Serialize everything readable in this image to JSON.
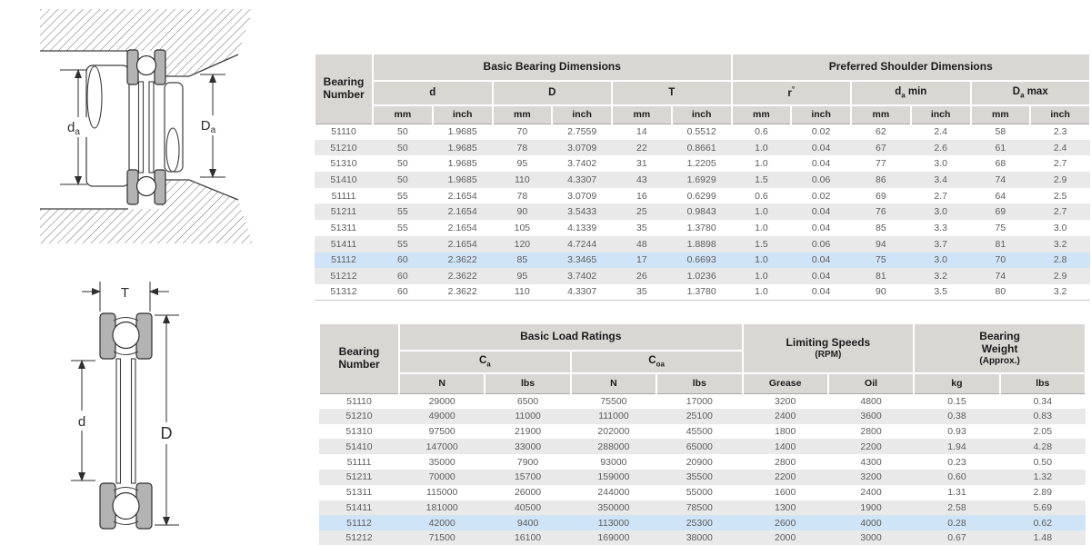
{
  "colors": {
    "header_bg": "#d8d7d4",
    "row_alt_bg": "#e9e9e9",
    "highlight_bg": "#cfe4f7",
    "header_text": "#1b1b1b",
    "data_text": "#5c5c5c",
    "washer_gray": "#b3b3b3"
  },
  "diagram_mounted": {
    "label_da": {
      "base": "d",
      "sub": "a"
    },
    "label_Da": {
      "base": "D",
      "sub": "a"
    }
  },
  "diagram_free": {
    "label_T": "T",
    "label_d": "d",
    "label_D": "D"
  },
  "dimensions_table": {
    "corner_header": "Bearing Number",
    "group1": "Basic Bearing Dimensions",
    "group2": "Preferred Shoulder Dimensions",
    "cols": [
      {
        "label": "d"
      },
      {
        "label": "D"
      },
      {
        "label": "T"
      },
      {
        "label": "r",
        "sup": "°"
      },
      {
        "label": "d",
        "sub": "a",
        "suffix": " min"
      },
      {
        "label": "D",
        "sub": "a",
        "suffix": " max"
      }
    ],
    "units": [
      "mm",
      "inch"
    ],
    "rows": [
      {
        "bearing": "51110",
        "values": [
          "50",
          "1.9685",
          "70",
          "2.7559",
          "14",
          "0.5512",
          "0.6",
          "0.02",
          "62",
          "2.4",
          "58",
          "2.3"
        ]
      },
      {
        "bearing": "51210",
        "values": [
          "50",
          "1.9685",
          "78",
          "3.0709",
          "22",
          "0.8661",
          "1.0",
          "0.04",
          "67",
          "2.6",
          "61",
          "2.4"
        ]
      },
      {
        "bearing": "51310",
        "values": [
          "50",
          "1.9685",
          "95",
          "3.7402",
          "31",
          "1.2205",
          "1.0",
          "0.04",
          "77",
          "3.0",
          "68",
          "2.7"
        ]
      },
      {
        "bearing": "51410",
        "values": [
          "50",
          "1.9685",
          "110",
          "4.3307",
          "43",
          "1.6929",
          "1.5",
          "0.06",
          "86",
          "3.4",
          "74",
          "2.9"
        ]
      },
      {
        "bearing": "51111",
        "values": [
          "55",
          "2.1654",
          "78",
          "3.0709",
          "16",
          "0.6299",
          "0.6",
          "0.02",
          "69",
          "2.7",
          "64",
          "2.5"
        ]
      },
      {
        "bearing": "51211",
        "values": [
          "55",
          "2.1654",
          "90",
          "3.5433",
          "25",
          "0.9843",
          "1.0",
          "0.04",
          "76",
          "3.0",
          "69",
          "2.7"
        ]
      },
      {
        "bearing": "51311",
        "values": [
          "55",
          "2.1654",
          "105",
          "4.1339",
          "35",
          "1.3780",
          "1.0",
          "0.04",
          "85",
          "3.3",
          "75",
          "3.0"
        ]
      },
      {
        "bearing": "51411",
        "values": [
          "55",
          "2.1654",
          "120",
          "4.7244",
          "48",
          "1.8898",
          "1.5",
          "0.06",
          "94",
          "3.7",
          "81",
          "3.2"
        ]
      },
      {
        "bearing": "51112",
        "highlight": true,
        "values": [
          "60",
          "2.3622",
          "85",
          "3.3465",
          "17",
          "0.6693",
          "1.0",
          "0.04",
          "75",
          "3.0",
          "70",
          "2.8"
        ]
      },
      {
        "bearing": "51212",
        "values": [
          "60",
          "2.3622",
          "95",
          "3.7402",
          "26",
          "1.0236",
          "1.0",
          "0.04",
          "81",
          "3.2",
          "74",
          "2.9"
        ]
      },
      {
        "bearing": "51312",
        "values": [
          "60",
          "2.3622",
          "110",
          "4.3307",
          "35",
          "1.3780",
          "1.0",
          "0.04",
          "90",
          "3.5",
          "80",
          "3.2"
        ]
      }
    ]
  },
  "ratings_table": {
    "corner_header": "Bearing Number",
    "group1": "Basic Load Ratings",
    "speeds_line1": "Limiting Speeds",
    "speeds_line2": "(RPM)",
    "weight_line1": "Bearing",
    "weight_line2": "Weight",
    "weight_line3": "(Approx.)",
    "subgroup1": {
      "base": "C",
      "sub": "a"
    },
    "subgroup2": {
      "base": "C",
      "sub": "oa"
    },
    "units": [
      "N",
      "lbs",
      "N",
      "lbs",
      "Grease",
      "Oil",
      "kg",
      "lbs"
    ],
    "rows": [
      {
        "bearing": "51110",
        "values": [
          "29000",
          "6500",
          "75500",
          "17000",
          "3200",
          "4800",
          "0.15",
          "0.34"
        ]
      },
      {
        "bearing": "51210",
        "values": [
          "49000",
          "11000",
          "111000",
          "25100",
          "2400",
          "3600",
          "0.38",
          "0.83"
        ]
      },
      {
        "bearing": "51310",
        "values": [
          "97500",
          "21900",
          "202000",
          "45500",
          "1800",
          "2800",
          "0.93",
          "2.05"
        ]
      },
      {
        "bearing": "51410",
        "values": [
          "147000",
          "33000",
          "288000",
          "65000",
          "1400",
          "2200",
          "1.94",
          "4.28"
        ]
      },
      {
        "bearing": "51111",
        "values": [
          "35000",
          "7900",
          "93000",
          "20900",
          "2800",
          "4300",
          "0.23",
          "0.50"
        ]
      },
      {
        "bearing": "51211",
        "values": [
          "70000",
          "15700",
          "159000",
          "35500",
          "2200",
          "3200",
          "0.60",
          "1.32"
        ]
      },
      {
        "bearing": "51311",
        "values": [
          "115000",
          "26000",
          "244000",
          "55000",
          "1600",
          "2400",
          "1.31",
          "2.89"
        ]
      },
      {
        "bearing": "51411",
        "values": [
          "181000",
          "40500",
          "350000",
          "78500",
          "1300",
          "1900",
          "2.58",
          "5.69"
        ]
      },
      {
        "bearing": "51112",
        "highlight": true,
        "values": [
          "42000",
          "9400",
          "113000",
          "25300",
          "2600",
          "4000",
          "0.28",
          "0.62"
        ]
      },
      {
        "bearing": "51212",
        "values": [
          "71500",
          "16100",
          "169000",
          "38000",
          "2000",
          "3000",
          "0.67",
          "1.48"
        ]
      }
    ]
  }
}
